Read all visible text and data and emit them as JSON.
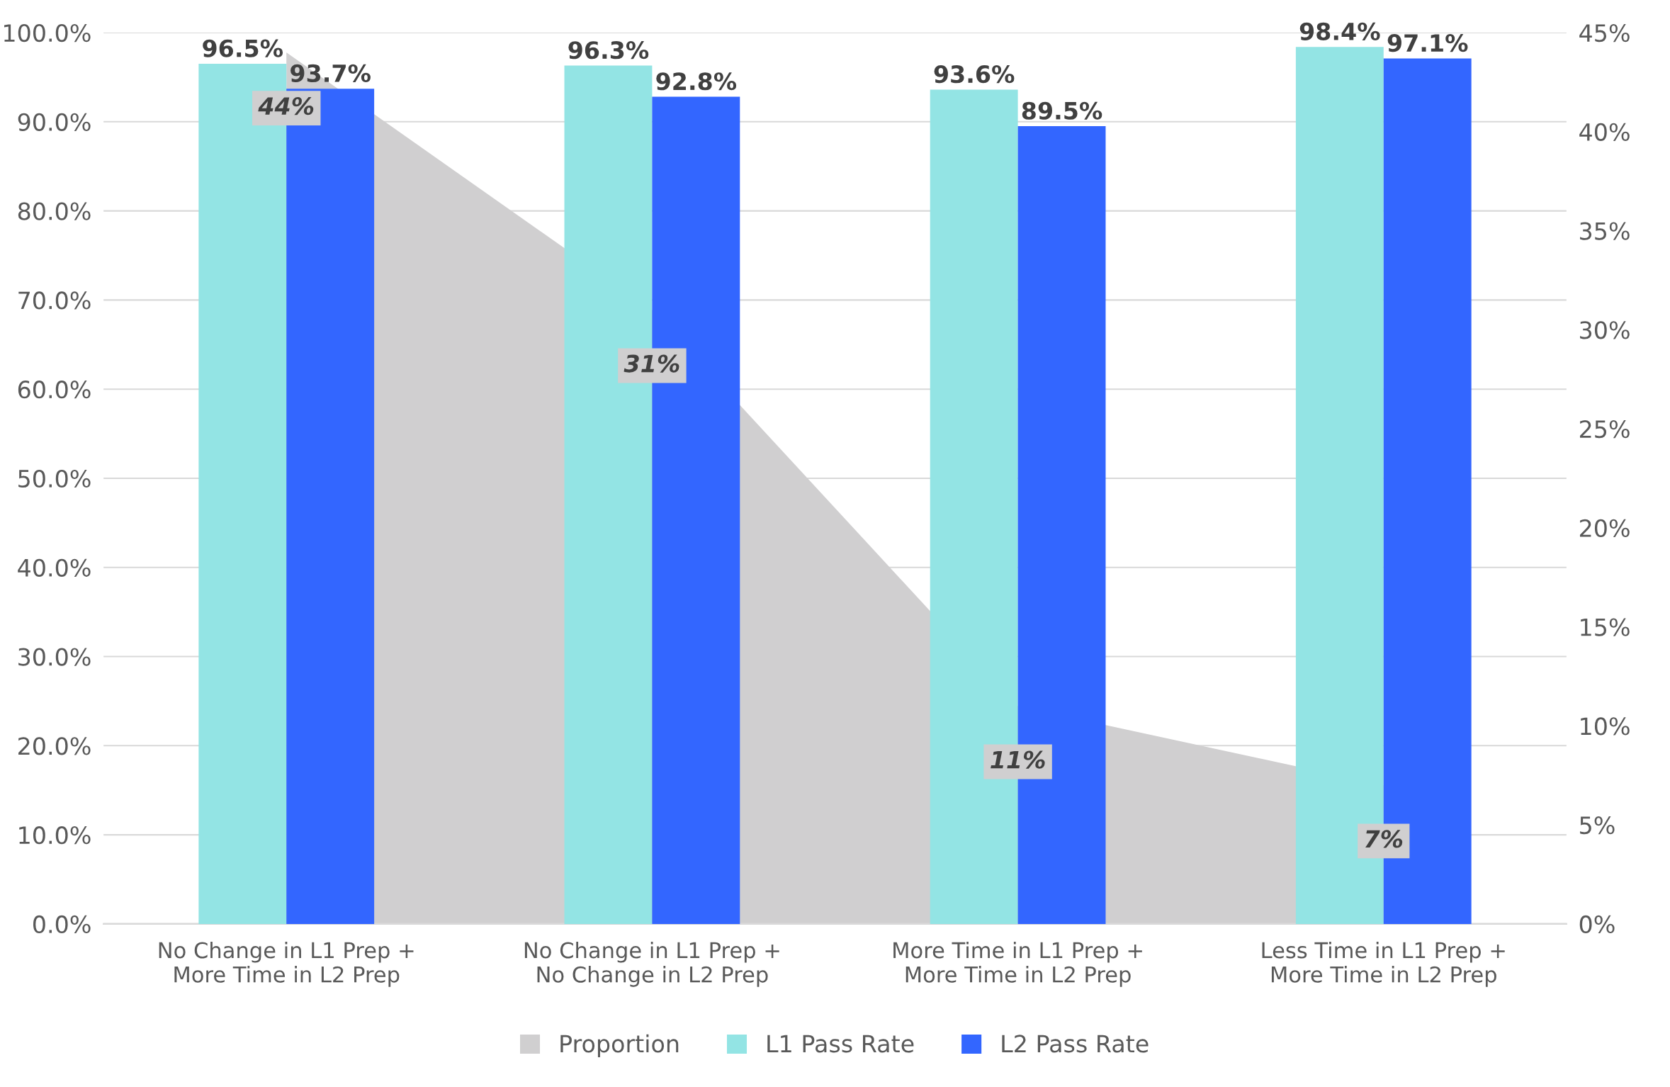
{
  "chart_data": {
    "type": "bar",
    "categories": [
      "No Change in L1 Prep +\nMore Time in L2 Prep",
      "No Change in L1 Prep +\nNo Change in L2 Prep",
      "More Time in L1 Prep +\nMore Time in L2 Prep",
      "Less Time in L1 Prep +\nMore Time in L2 Prep"
    ],
    "series": [
      {
        "name": "Proportion",
        "type": "area",
        "axis": "y2",
        "color": "#d0cfd0",
        "values": [
          44,
          31,
          11,
          7
        ],
        "value_labels": [
          "44%",
          "31%",
          "11%",
          "7%"
        ]
      },
      {
        "name": "L1 Pass Rate",
        "color": "#93e4e4",
        "values": [
          96.5,
          96.3,
          93.6,
          98.4
        ],
        "value_labels": [
          "96.5%",
          "96.3%",
          "93.6%",
          "98.4%"
        ]
      },
      {
        "name": "L2 Pass Rate",
        "color": "#3366ff",
        "values": [
          93.7,
          92.8,
          89.5,
          97.1
        ],
        "value_labels": [
          "93.7%",
          "92.8%",
          "89.5%",
          "97.1%"
        ]
      }
    ],
    "ylim": [
      0,
      100
    ],
    "yticks": [
      {
        "value": 0,
        "label": "0.0%"
      },
      {
        "value": 10,
        "label": "10.0%"
      },
      {
        "value": 20,
        "label": "20.0%"
      },
      {
        "value": 30,
        "label": "30.0%"
      },
      {
        "value": 40,
        "label": "40.0%"
      },
      {
        "value": 50,
        "label": "50.0%"
      },
      {
        "value": 60,
        "label": "60.0%"
      },
      {
        "value": 70,
        "label": "70.0%"
      },
      {
        "value": 80,
        "label": "80.0%"
      },
      {
        "value": 90,
        "label": "90.0%"
      },
      {
        "value": 100,
        "label": "100.0%"
      }
    ],
    "y2lim": [
      0,
      45
    ],
    "y2ticks": [
      {
        "value": 0,
        "label": "0%"
      },
      {
        "value": 5,
        "label": "5%"
      },
      {
        "value": 10,
        "label": "10%"
      },
      {
        "value": 15,
        "label": "15%"
      },
      {
        "value": 20,
        "label": "20%"
      },
      {
        "value": 25,
        "label": "25%"
      },
      {
        "value": 30,
        "label": "30%"
      },
      {
        "value": 35,
        "label": "35%"
      },
      {
        "value": 40,
        "label": "40%"
      },
      {
        "value": 45,
        "label": "45%"
      }
    ],
    "grid": "y",
    "legend": "bottom"
  }
}
